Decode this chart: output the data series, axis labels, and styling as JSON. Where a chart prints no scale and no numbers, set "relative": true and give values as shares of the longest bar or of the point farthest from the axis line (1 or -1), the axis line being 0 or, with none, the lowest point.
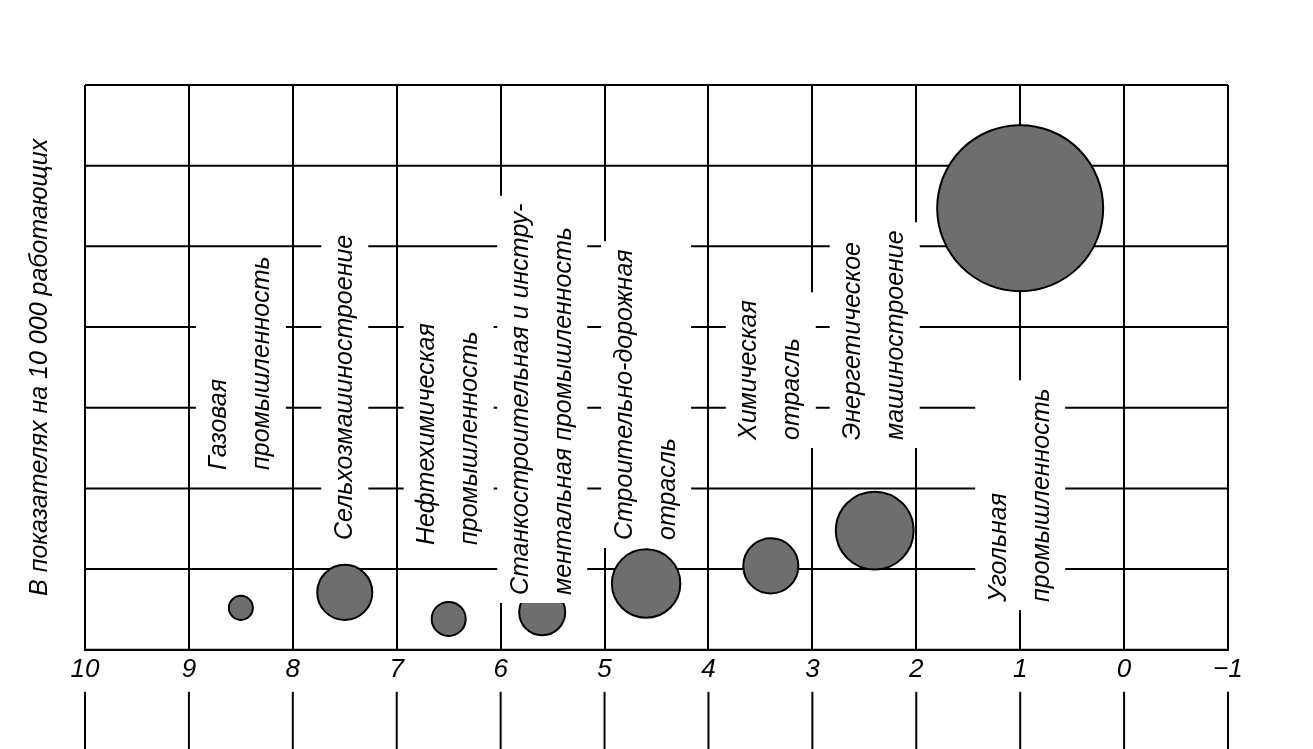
{
  "chart_data": {
    "type": "bubble",
    "relative": true,
    "grid": true,
    "ylabel": "В показателях на 10 000 работающих",
    "xlim": [
      10,
      -1
    ],
    "xticks": [
      10,
      9,
      8,
      7,
      6,
      5,
      4,
      3,
      2,
      1,
      0,
      {
        "value": -1,
        "label": "−1"
      }
    ],
    "color": "#6e6e6e",
    "x": [
      8.5,
      7.5,
      6.5,
      5.6,
      4.6,
      3.4,
      2.4,
      1
    ],
    "values": [
      0.095,
      0.13,
      0.07,
      0.085,
      0.15,
      0.19,
      0.27,
      1
    ],
    "sizes": [
      0.021,
      0.11,
      0.042,
      0.077,
      0.17,
      0.11,
      0.22,
      1
    ],
    "annotations": [
      "Газовая\nпромышленность",
      "Сельхозмашиностроение",
      "Нефтехимическая\nпромышленность",
      "Станкостроительная и инстру-\nментальная промышленность",
      "Строительно-дорожная\nотрасль",
      "Химическая\nотрасль",
      "Энергетическое\nмашиностроение",
      "Угольная\nпромышленность"
    ]
  }
}
